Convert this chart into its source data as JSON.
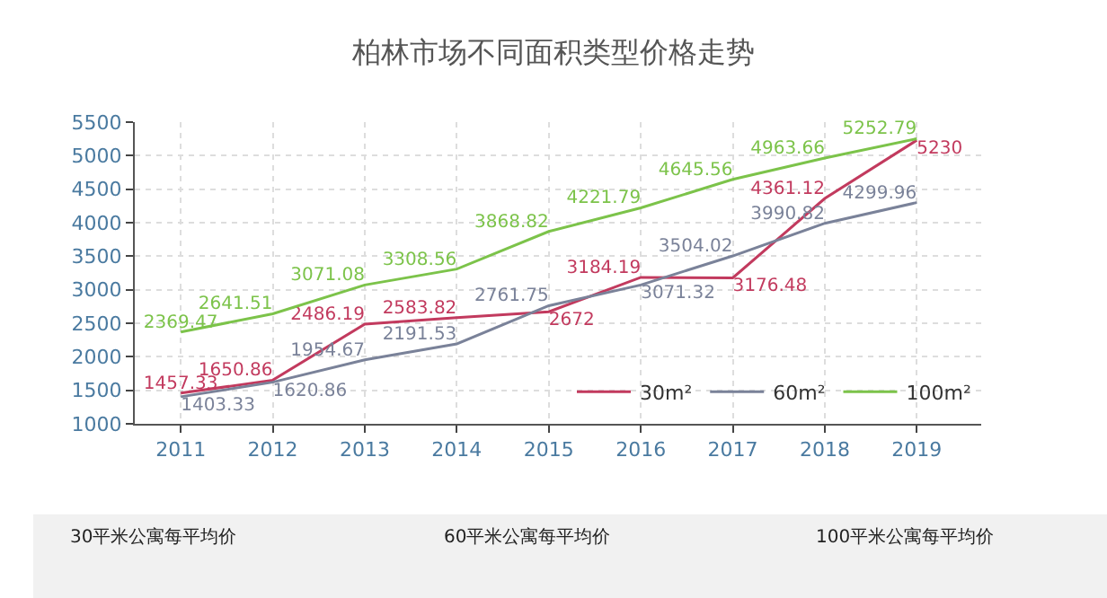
{
  "chart_data": {
    "type": "line",
    "title": "柏林市场不同面积类型价格走势",
    "categories": [
      "2011",
      "2012",
      "2013",
      "2014",
      "2015",
      "2016",
      "2017",
      "2018",
      "2019"
    ],
    "series": [
      {
        "name": "30m²",
        "color": "#c23a5e",
        "values": [
          1457.33,
          1650.86,
          2486.19,
          2583.82,
          2672,
          3184.19,
          3176.48,
          4361.12,
          5230
        ]
      },
      {
        "name": "60m²",
        "color": "#7a8299",
        "values": [
          1403.33,
          1620.86,
          1954.67,
          2191.53,
          2761.75,
          3071.32,
          3504.02,
          3990.82,
          4299.96
        ]
      },
      {
        "name": "100m²",
        "color": "#7cc34a",
        "values": [
          2369.47,
          2641.51,
          3071.08,
          3308.56,
          3868.82,
          4221.79,
          4645.56,
          4963.66,
          5252.79
        ]
      }
    ],
    "ylim": [
      1000,
      5500
    ],
    "yticks": [
      1000,
      1500,
      2000,
      2500,
      3000,
      3500,
      4000,
      4500,
      5000,
      5500
    ],
    "grid": true,
    "legend": "bottom right",
    "marker": "none",
    "line_style": "solid",
    "data_labels": true,
    "annotations": [
      "30平米公寓每平均价",
      "60平米公寓每平均价",
      "100平米公寓每平均价"
    ]
  }
}
